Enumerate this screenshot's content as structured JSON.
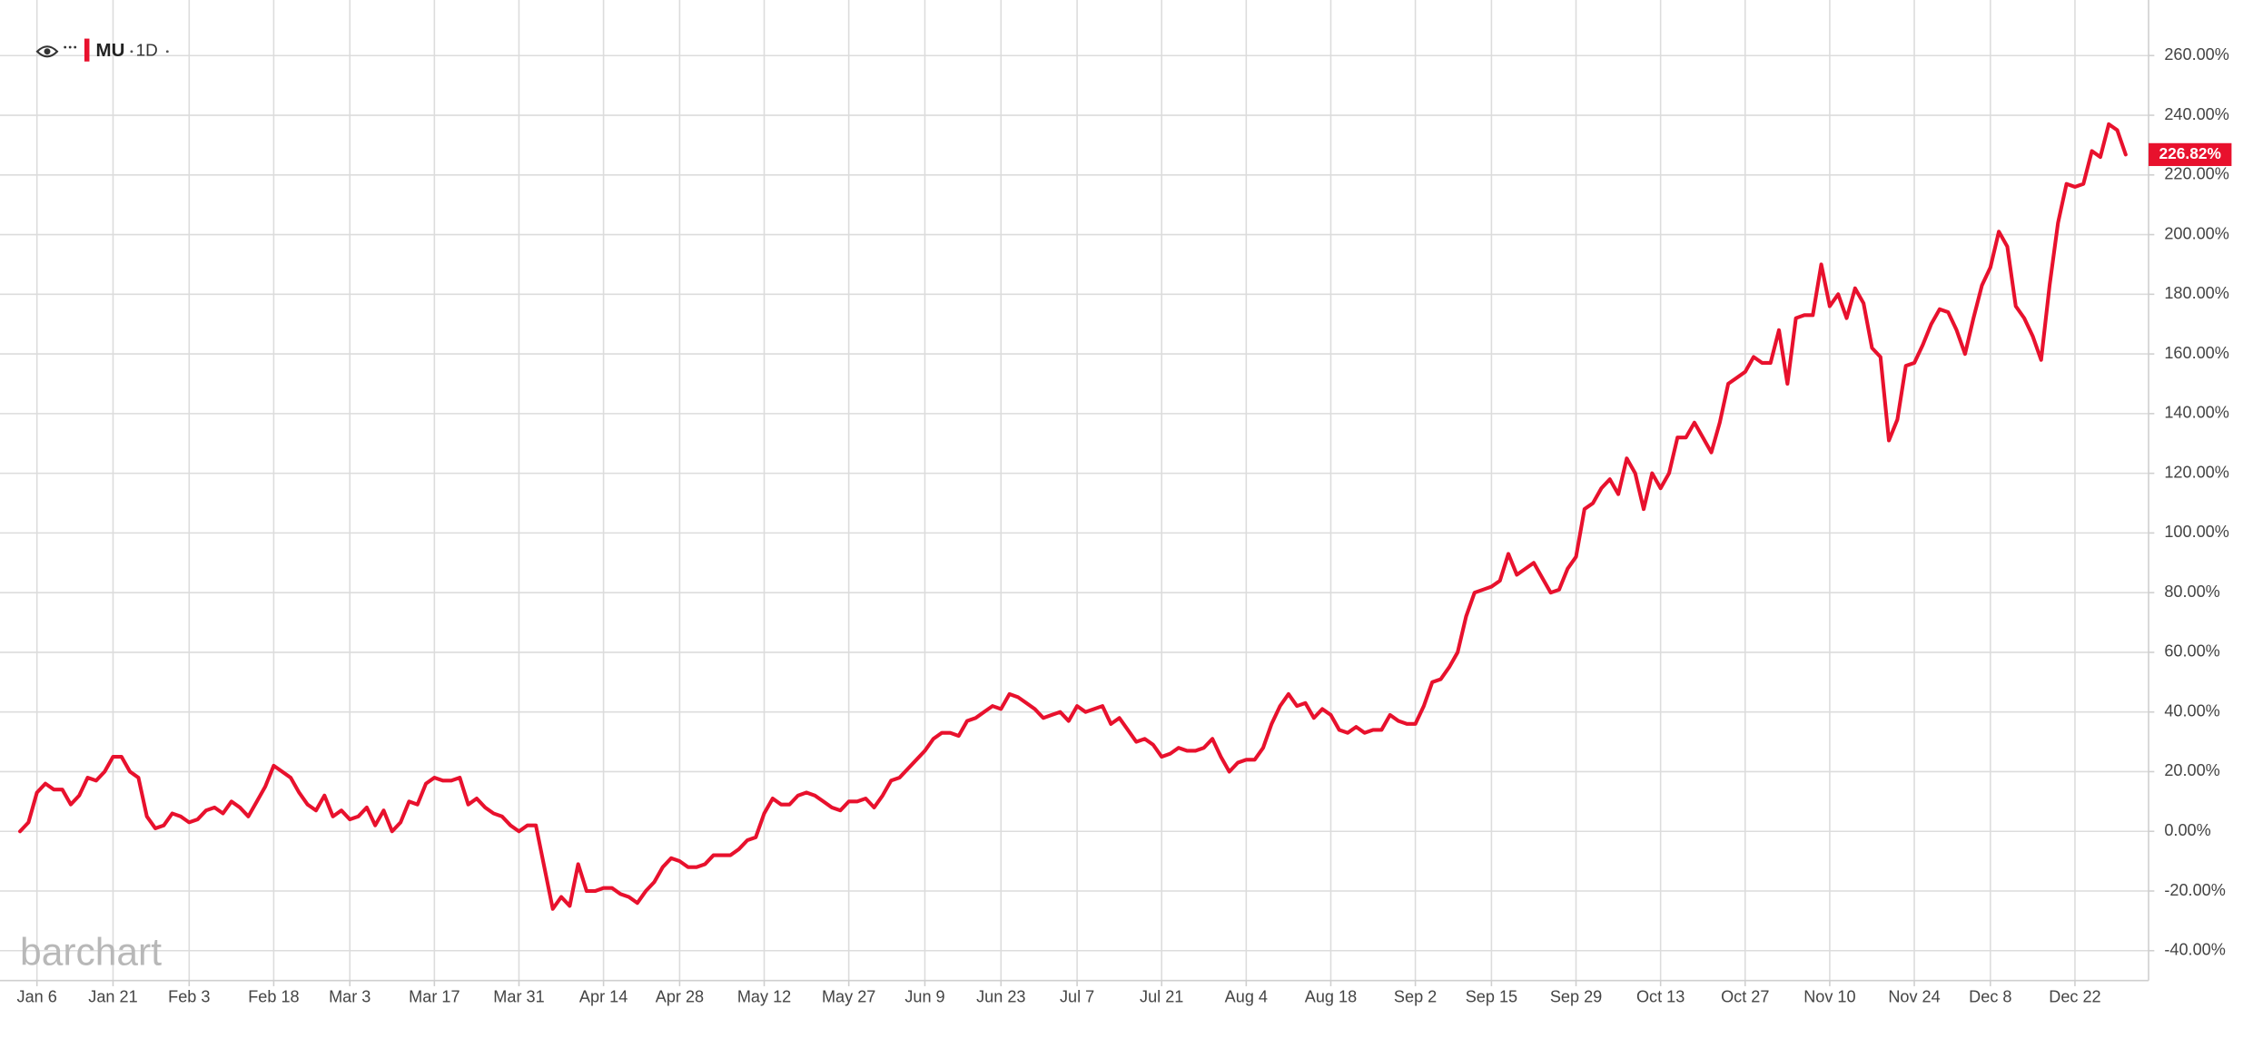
{
  "chart_data": {
    "type": "line",
    "symbol": "MU",
    "interval": "1D",
    "watermark": "barchart",
    "grid": true,
    "ylim": [
      -50,
      270
    ],
    "yticks": [
      {
        "value": -40,
        "label": "-40.00%"
      },
      {
        "value": -20,
        "label": "-20.00%"
      },
      {
        "value": 0,
        "label": "0.00%"
      },
      {
        "value": 20,
        "label": "20.00%"
      },
      {
        "value": 40,
        "label": "40.00%"
      },
      {
        "value": 60,
        "label": "60.00%"
      },
      {
        "value": 80,
        "label": "80.00%"
      },
      {
        "value": 100,
        "label": "100.00%"
      },
      {
        "value": 120,
        "label": "120.00%"
      },
      {
        "value": 140,
        "label": "140.00%"
      },
      {
        "value": 160,
        "label": "160.00%"
      },
      {
        "value": 180,
        "label": "180.00%"
      },
      {
        "value": 200,
        "label": "200.00%"
      },
      {
        "value": 220,
        "label": "220.00%"
      },
      {
        "value": 240,
        "label": "240.00%"
      },
      {
        "value": 260,
        "label": "260.00%"
      }
    ],
    "categories": [
      null,
      null,
      "Jan 6",
      null,
      null,
      null,
      null,
      null,
      null,
      null,
      null,
      "Jan 21",
      null,
      null,
      null,
      null,
      null,
      null,
      null,
      null,
      "Feb 3",
      null,
      null,
      null,
      null,
      null,
      null,
      null,
      null,
      null,
      "Feb 18",
      null,
      null,
      null,
      null,
      null,
      null,
      null,
      null,
      "Mar 3",
      null,
      null,
      null,
      null,
      null,
      null,
      null,
      null,
      null,
      "Mar 17",
      null,
      null,
      null,
      null,
      null,
      null,
      null,
      null,
      null,
      "Mar 31",
      null,
      null,
      null,
      null,
      null,
      null,
      null,
      null,
      null,
      "Apr 14",
      null,
      null,
      null,
      null,
      null,
      null,
      null,
      null,
      "Apr 28",
      null,
      null,
      null,
      null,
      null,
      null,
      null,
      null,
      null,
      "May 12",
      null,
      null,
      null,
      null,
      null,
      null,
      null,
      null,
      null,
      "May 27",
      null,
      null,
      null,
      null,
      null,
      null,
      null,
      null,
      "Jun 9",
      null,
      null,
      null,
      null,
      null,
      null,
      null,
      null,
      "Jun 23",
      null,
      null,
      null,
      null,
      null,
      null,
      null,
      null,
      "Jul 7",
      null,
      null,
      null,
      null,
      null,
      null,
      null,
      null,
      null,
      "Jul 21",
      null,
      null,
      null,
      null,
      null,
      null,
      null,
      null,
      null,
      "Aug 4",
      null,
      null,
      null,
      null,
      null,
      null,
      null,
      null,
      null,
      "Aug 18",
      null,
      null,
      null,
      null,
      null,
      null,
      null,
      null,
      null,
      "Sep 2",
      null,
      null,
      null,
      null,
      null,
      null,
      null,
      null,
      "Sep 15",
      null,
      null,
      null,
      null,
      null,
      null,
      null,
      null,
      null,
      "Sep 29",
      null,
      null,
      null,
      null,
      null,
      null,
      null,
      null,
      null,
      "Oct 13",
      null,
      null,
      null,
      null,
      null,
      null,
      null,
      null,
      null,
      "Oct 27",
      null,
      null,
      null,
      null,
      null,
      null,
      null,
      null,
      null,
      "Nov 10",
      null,
      null,
      null,
      null,
      null,
      null,
      null,
      null,
      null,
      "Nov 24",
      null,
      null,
      null,
      null,
      null,
      null,
      null,
      null,
      "Dec 8",
      null,
      null,
      null,
      null,
      null,
      null,
      null,
      null,
      null,
      "Dec 22",
      null,
      null,
      null,
      null,
      null,
      null
    ],
    "series": [
      {
        "name": "MU",
        "color": "#e8112d",
        "values": [
          0,
          3,
          13,
          16,
          14,
          14,
          9,
          12,
          18,
          17,
          20,
          25,
          25,
          20,
          18,
          5,
          1,
          2,
          6,
          5,
          3,
          4,
          7,
          8,
          6,
          10,
          8,
          5,
          10,
          15,
          22,
          20,
          18,
          13,
          9,
          7,
          12,
          5,
          7,
          4,
          5,
          8,
          2,
          7,
          0,
          3,
          10,
          9,
          16,
          18,
          17,
          17,
          18,
          9,
          11,
          8,
          6,
          5,
          2,
          0,
          2,
          2,
          -12,
          -26,
          -22,
          -25,
          -11,
          -20,
          -20,
          -19,
          -19,
          -21,
          -22,
          -24,
          -20,
          -17,
          -12,
          -9,
          -10,
          -12,
          -12,
          -11,
          -8,
          -8,
          -8,
          -6,
          -3,
          -2,
          6,
          11,
          9,
          9,
          12,
          13,
          12,
          10,
          8,
          7,
          10,
          10,
          11,
          8,
          12,
          17,
          18,
          21,
          24,
          27,
          31,
          33,
          33,
          32,
          37,
          38,
          40,
          42,
          41,
          46,
          45,
          43,
          41,
          38,
          39,
          40,
          37,
          42,
          40,
          41,
          42,
          36,
          38,
          34,
          30,
          31,
          29,
          25,
          26,
          28,
          27,
          27,
          28,
          31,
          25,
          20,
          23,
          24,
          24,
          28,
          36,
          42,
          46,
          42,
          43,
          38,
          41,
          39,
          34,
          33,
          35,
          33,
          34,
          34,
          39,
          37,
          36,
          36,
          42,
          50,
          51,
          55,
          60,
          72,
          80,
          81,
          82,
          84,
          93,
          86,
          88,
          90,
          85,
          80,
          81,
          88,
          92,
          108,
          110,
          115,
          118,
          113,
          125,
          120,
          108,
          120,
          115,
          120,
          132,
          132,
          137,
          132,
          127,
          137,
          150,
          152,
          154,
          159,
          157,
          157,
          168,
          150,
          172,
          173,
          173,
          190,
          176,
          180,
          172,
          182,
          177,
          162,
          159,
          131,
          138,
          156,
          157,
          163,
          170,
          175,
          174,
          168,
          160,
          172,
          183,
          189,
          201,
          196,
          176,
          172,
          166,
          158,
          183,
          204,
          217,
          216,
          217,
          228,
          226,
          237,
          235,
          226.82
        ],
        "value_labels": [
          null,
          null,
          null,
          null,
          null,
          null,
          null,
          null,
          null,
          null,
          null,
          null,
          null,
          null,
          null,
          null,
          null,
          null,
          null,
          null,
          null,
          null,
          null,
          null,
          null,
          null,
          null,
          null,
          null,
          null,
          null,
          null,
          null,
          null,
          null,
          null,
          null,
          null,
          null,
          null,
          null,
          null,
          null,
          null,
          null,
          null,
          null,
          null,
          null,
          null,
          null,
          null,
          null,
          null,
          null,
          null,
          null,
          null,
          null,
          null,
          null,
          null,
          null,
          null,
          null,
          null,
          null,
          null,
          null,
          null,
          null,
          null,
          null,
          null,
          null,
          null,
          null,
          null,
          null,
          null,
          null,
          null,
          null,
          null,
          null,
          null,
          null,
          null,
          null,
          null,
          null,
          null,
          null,
          null,
          null,
          null,
          null,
          null,
          null,
          null,
          null,
          null,
          null,
          null,
          null,
          null,
          null,
          null,
          null,
          null,
          null,
          null,
          null,
          null,
          null,
          null,
          null,
          null,
          null,
          null,
          null,
          null,
          null,
          null,
          null,
          null,
          null,
          null,
          null,
          null,
          null,
          null,
          null,
          null,
          null,
          null,
          null,
          null,
          null,
          null,
          null,
          null,
          null,
          null,
          null,
          null,
          null,
          null,
          null,
          null,
          null,
          null,
          null,
          null,
          null,
          null,
          null,
          null,
          null,
          null,
          null,
          null,
          null,
          null,
          null,
          null,
          null,
          null,
          null,
          null,
          null,
          null,
          null,
          null,
          null,
          null,
          null,
          null,
          null,
          null,
          null,
          null,
          null,
          null,
          null,
          null,
          null,
          null,
          null,
          null,
          null,
          null,
          null,
          null,
          null,
          null,
          null,
          null,
          null,
          null,
          null,
          null,
          null,
          null,
          null,
          null,
          null,
          null,
          null,
          null,
          null,
          null,
          null,
          null,
          null,
          null,
          null,
          null,
          null,
          null,
          null,
          null,
          null,
          null,
          null,
          null,
          null,
          null,
          null,
          null,
          null,
          null,
          null,
          null,
          null,
          null,
          null,
          null,
          null,
          null,
          null,
          null,
          null,
          null,
          null,
          null,
          null,
          null,
          null,
          "226.82%"
        ]
      }
    ]
  }
}
